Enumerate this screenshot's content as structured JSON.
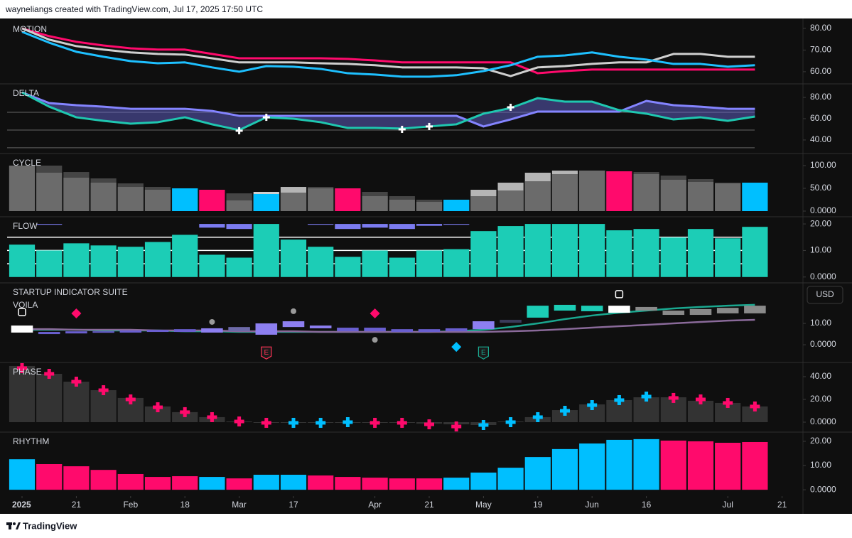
{
  "header": {
    "text": "wayneliangs created with TradingView.com, Jul 17, 2025 17:50 UTC"
  },
  "footer": {
    "logo_text": "TradingView"
  },
  "currency_button": "USD",
  "chart_data": [
    {
      "type": "line",
      "title": "MOTION",
      "ylim": [
        54.4,
        83.9
      ],
      "yticks": [
        {
          "value": 80,
          "label": "80.00"
        },
        {
          "value": 70,
          "label": "70.00"
        },
        {
          "value": 60,
          "label": "60.00"
        }
      ],
      "series": [
        {
          "color": "#ff0a6c",
          "values": [
            80,
            76.4,
            73.8,
            72.1,
            70.8,
            70.2,
            70.2,
            68.2,
            66.2,
            66.2,
            66.2,
            66.2,
            65.9,
            65.2,
            64.3,
            64.3,
            64.3,
            64.3,
            64.3,
            59.3,
            60.3,
            61,
            61,
            61,
            61,
            61,
            61,
            61
          ]
        },
        {
          "color": "#cfcfcf",
          "values": [
            80,
            74.8,
            71.8,
            70.2,
            68.9,
            68.2,
            67.9,
            66.2,
            64.3,
            64.3,
            64.3,
            63.9,
            63.6,
            63,
            62,
            62,
            62,
            61.6,
            58,
            62,
            62.6,
            63.6,
            64.3,
            64.3,
            68.2,
            68.2,
            66.9,
            66.9
          ]
        },
        {
          "color": "#1ec0ff",
          "values": [
            78.4,
            73.4,
            69.2,
            66.9,
            64.9,
            63.9,
            64.3,
            62,
            60,
            62.6,
            62.3,
            61.3,
            59.3,
            58.7,
            57.7,
            57.7,
            58.4,
            60.3,
            63,
            66.9,
            67.5,
            68.9,
            66.9,
            65.6,
            63.6,
            63.6,
            62.3,
            63
          ]
        }
      ]
    },
    {
      "type": "line",
      "title": "DELTA",
      "fill_between": "#6b6be0",
      "ylim": [
        27.3,
        92.7
      ],
      "yticks": [
        {
          "value": 80,
          "label": "80.00"
        },
        {
          "value": 60,
          "label": "60.00"
        },
        {
          "value": 40,
          "label": "40.00"
        }
      ],
      "levels": [
        66,
        49.3,
        32.7
      ],
      "series": [
        {
          "color": "#8484ff",
          "values": [
            84.7,
            74.7,
            72.7,
            71.3,
            69.3,
            69.3,
            69.3,
            67.3,
            62.7,
            62.7,
            62.7,
            62.7,
            62.7,
            62.7,
            62.7,
            62.7,
            62.7,
            52.7,
            59.3,
            66.7,
            66.7,
            66.7,
            66.7,
            76.7,
            72.7,
            71.3,
            69.3,
            69.3
          ]
        },
        {
          "color": "#1fc7b0",
          "values": [
            84.7,
            71.3,
            61.3,
            58,
            55.3,
            56.7,
            61.3,
            54.7,
            49.3,
            61.3,
            60,
            56.7,
            51.3,
            51.3,
            50.7,
            52.7,
            54.7,
            64.7,
            70,
            79.3,
            76,
            76,
            68,
            64.7,
            59.3,
            61.3,
            58,
            62
          ]
        }
      ],
      "markers": [
        {
          "index": 8,
          "value": 48.7
        },
        {
          "index": 9,
          "value": 61.3
        },
        {
          "index": 14,
          "value": 50
        },
        {
          "index": 15,
          "value": 52.7
        },
        {
          "index": 18,
          "value": 70.7
        }
      ]
    },
    {
      "type": "bar",
      "title": "CYCLE",
      "ylim": [
        -12.5,
        126.6
      ],
      "yticks": [
        {
          "value": 100,
          "label": "100.00"
        },
        {
          "value": 50,
          "label": "50.00"
        },
        {
          "value": 0,
          "label": "0.0000"
        }
      ],
      "series": [
        {
          "colors": [
            "#6b6b6b",
            "#454545",
            "#454545",
            "#454545",
            "#454545",
            "#454545",
            "#454545",
            "#454545",
            "#454545",
            "#cfcfcf",
            "#b5b5b5",
            "#454545",
            "#454545",
            "#454545",
            "#454545",
            "#454545",
            "#454545",
            "#b5b5b5",
            "#b5b5b5",
            "#b5b5b5",
            "#b5b5b5",
            "#6b6b6b",
            "#454545",
            "#454545",
            "#454545",
            "#454545",
            "#454545",
            "#454545"
          ],
          "values": [
            100,
            100,
            85.9,
            71.9,
            60.9,
            53.1,
            50,
            46.9,
            39,
            42.2,
            53.1,
            53.1,
            50,
            42.2,
            32.8,
            25,
            25,
            46.9,
            62.5,
            84.4,
            89,
            89,
            87.5,
            85.9,
            78.1,
            70.3,
            62.5,
            62.5
          ]
        },
        {
          "colors": [
            "#6b6b6b",
            "#6b6b6b",
            "#6b6b6b",
            "#6b6b6b",
            "#6b6b6b",
            "#6b6b6b",
            "#00bfff",
            "#ff0a6c",
            "#6b6b6b",
            "#00bfff",
            "#6b6b6b",
            "#6b6b6b",
            "#ff0a6c",
            "#6b6b6b",
            "#6b6b6b",
            "#6b6b6b",
            "#00bfff",
            "#6b6b6b",
            "#6b6b6b",
            "#6b6b6b",
            "#6b6b6b",
            "#6b6b6b",
            "#ff0a6c",
            "#6b6b6b",
            "#6b6b6b",
            "#6b6b6b",
            "#6b6b6b",
            "#00bfff"
          ],
          "values": [
            100,
            84.4,
            73.4,
            62.5,
            53.1,
            46.9,
            50,
            46.9,
            23.4,
            37.5,
            40.6,
            50,
            50,
            32.8,
            25,
            20.3,
            25,
            32.8,
            45.3,
            65.6,
            81.3,
            89,
            87.5,
            81.3,
            68.8,
            64.1,
            60.9,
            62.5
          ]
        }
      ]
    },
    {
      "type": "bar",
      "title": "FLOW",
      "ylim": [
        -2.2,
        22.7
      ],
      "yticks": [
        {
          "value": 20,
          "label": "20.00"
        },
        {
          "value": 10,
          "label": "10.00"
        },
        {
          "value": 0,
          "label": "0.0000"
        }
      ],
      "levels": [
        15,
        10,
        5
      ],
      "series": [
        {
          "color": "#1ccdb6",
          "values": [
            12.2,
            10,
            12.7,
            11.9,
            11.4,
            13.2,
            15.9,
            8.4,
            7.3,
            20,
            14.1,
            11.4,
            7.6,
            10,
            7.3,
            10,
            10.5,
            17.3,
            19.2,
            20,
            20,
            20,
            17.6,
            18.1,
            14.9,
            18.1,
            14.6,
            18.9
          ]
        },
        {
          "color": "#7b7bf0",
          "base": 20,
          "values": [
            null,
            19.7,
            null,
            null,
            null,
            null,
            null,
            18.6,
            18.1,
            null,
            null,
            19.7,
            18.1,
            18.6,
            18.1,
            19.3,
            19.7,
            null,
            null,
            null,
            null,
            null,
            null,
            null,
            null,
            null,
            null,
            null
          ]
        }
      ]
    },
    {
      "type": "candlestick",
      "title": "STARTUP INDICATOR SUITE",
      "subtitle": "VOILA",
      "ylim": [
        -8.3,
        29
      ],
      "yticks": [
        {
          "value": 10,
          "label": "10.00"
        },
        {
          "value": 0,
          "label": "0.0000"
        }
      ],
      "series": [
        {
          "type": "line",
          "color": "#1aa890",
          "values": [
            7,
            7,
            7,
            6.7,
            6.7,
            6.7,
            6.3,
            6.3,
            6,
            6,
            6,
            6,
            6,
            6,
            6,
            6,
            6.3,
            7,
            8.3,
            10,
            12,
            13.7,
            15,
            16,
            17,
            17.7,
            18.3,
            18.7
          ]
        },
        {
          "type": "line",
          "color": "#8a6a9a",
          "values": [
            7.3,
            7.3,
            7,
            7,
            7,
            6.7,
            6.7,
            6.7,
            6.3,
            6.3,
            6.3,
            6,
            6,
            6,
            6,
            6,
            6,
            6,
            6.3,
            6.7,
            7.3,
            8,
            8.7,
            9.3,
            10,
            10.7,
            11.3,
            11.7
          ]
        },
        {
          "type": "candlestick",
          "open": [
            9,
            6,
            6.3,
            6.3,
            6.7,
            7,
            7.3,
            7.7,
            8.3,
            10,
            11,
            9,
            8,
            8,
            7.3,
            7.3,
            7.7,
            11,
            11.7,
            18.3,
            18.7,
            18.3,
            18.3,
            17.7,
            16,
            16.7,
            17.3,
            18.3
          ],
          "close": [
            5.7,
            5,
            5.3,
            5.7,
            5.7,
            6,
            6,
            5.7,
            6.3,
            4.7,
            8.3,
            7.7,
            6.3,
            6.3,
            6,
            6,
            6.3,
            7.3,
            10.3,
            12.7,
            16,
            15.7,
            15,
            16,
            14,
            14,
            14.7,
            14.7
          ],
          "colors": [
            "#ffffff",
            "#6a5fd0",
            "#6a5fd0",
            "#6a5fd0",
            "#6a5fd0",
            "#6a5fd0",
            "#6a5fd0",
            "#8d7ff0",
            "#6d6aa8",
            "#8d7ff0",
            "#8d7ff0",
            "#8d7ff0",
            "#6a5fd0",
            "#6a5fd0",
            "#6a5fd0",
            "#6a5fd0",
            "#6a5fd0",
            "#8d7ff0",
            "#3a3a5a",
            "#1ccdb6",
            "#1ccdb6",
            "#1ccdb6",
            "#ffffff",
            "#8a8a8a",
            "#8a8a8a",
            "#8a8a8a",
            "#8a8a8a",
            "#8a8a8a"
          ]
        }
      ],
      "signals": [
        {
          "index": 0,
          "value": 15.3,
          "shape": "square",
          "color": "#ffffff"
        },
        {
          "index": 2,
          "value": 14.7,
          "shape": "diamond",
          "color": "#ff0a6c"
        },
        {
          "index": 7,
          "value": 10.7,
          "shape": "circle",
          "color": "#9a9a9a"
        },
        {
          "index": 9,
          "value": -3.7,
          "shape": "badge",
          "color": "#ff3355",
          "label": "E"
        },
        {
          "index": 10,
          "value": 15.7,
          "shape": "circle",
          "color": "#9a9a9a"
        },
        {
          "index": 13,
          "value": 14.7,
          "shape": "diamond",
          "color": "#ff0a6c"
        },
        {
          "index": 13,
          "value": 2.3,
          "shape": "circle",
          "color": "#9a9a9a"
        },
        {
          "index": 16,
          "value": -1,
          "shape": "diamond",
          "color": "#00bfff"
        },
        {
          "index": 17,
          "value": -3.7,
          "shape": "badge",
          "color": "#1aa890",
          "label": "E"
        },
        {
          "index": 22,
          "value": 23.7,
          "shape": "square",
          "color": "#ffffff"
        }
      ]
    },
    {
      "type": "bar",
      "title": "PHASE",
      "ylim": [
        -8.75,
        52.5
      ],
      "yticks": [
        {
          "value": 40,
          "label": "40.00"
        },
        {
          "value": 20,
          "label": "20.00"
        },
        {
          "value": 0,
          "label": "0.0000"
        }
      ],
      "series": [
        {
          "color": "#333333",
          "values": [
            49.4,
            42.5,
            35.6,
            28.1,
            21.3,
            13.8,
            8.8,
            4.4,
            0.6,
            0,
            0,
            0,
            0,
            0,
            -0.6,
            -1.3,
            -1.9,
            -2.5,
            0.6,
            4.4,
            10.6,
            15.6,
            19.4,
            21.9,
            21.9,
            18.8,
            16.9,
            13.8
          ]
        },
        {
          "type": "cross",
          "colors": [
            "#ff0a6c",
            "#ff0a6c",
            "#ff0a6c",
            "#ff0a6c",
            "#ff0a6c",
            "#ff0a6c",
            "#ff0a6c",
            "#ff0a6c",
            "#ff0a6c",
            "#ff0a6c",
            "#00bfff",
            "#00bfff",
            "#00bfff",
            "#ff0a6c",
            "#ff0a6c",
            "#ff0a6c",
            "#ff0a6c",
            "#00bfff",
            "#00bfff",
            "#00bfff",
            "#00bfff",
            "#00bfff",
            "#00bfff",
            "#00bfff",
            "#ff0a6c",
            "#ff0a6c",
            "#ff0a6c",
            "#ff0a6c"
          ],
          "values": [
            47.5,
            42.5,
            35.6,
            28.1,
            20,
            13.1,
            8.8,
            4.4,
            0.6,
            -0.6,
            -0.6,
            -0.6,
            0,
            -0.6,
            -0.6,
            -1.9,
            -3.8,
            -2.5,
            0,
            4.4,
            10,
            15,
            19.4,
            22.5,
            21.3,
            20,
            16.9,
            13.8
          ]
        }
      ]
    },
    {
      "type": "bar",
      "title": "RHYTHM",
      "ylim": [
        -2.6,
        23.8
      ],
      "xlim": [
        -0.55,
        28.77
      ],
      "yticks": [
        {
          "value": 20,
          "label": "20.00"
        },
        {
          "value": 10,
          "label": "10.00"
        },
        {
          "value": 0,
          "label": "0.0000"
        }
      ],
      "xticks": [
        {
          "value": 0,
          "label": "2025"
        },
        {
          "value": 2,
          "label": "21"
        },
        {
          "value": 4,
          "label": "Feb"
        },
        {
          "value": 6,
          "label": "18"
        },
        {
          "value": 8,
          "label": "Mar"
        },
        {
          "value": 10,
          "label": "17"
        },
        {
          "value": 13,
          "label": "Apr"
        },
        {
          "value": 15,
          "label": "21"
        },
        {
          "value": 17,
          "label": "May"
        },
        {
          "value": 19,
          "label": "19"
        },
        {
          "value": 21,
          "label": "Jun"
        },
        {
          "value": 23,
          "label": "16"
        },
        {
          "value": 26,
          "label": "Jul"
        },
        {
          "value": 28,
          "label": "21"
        }
      ],
      "series": [
        {
          "colors": [
            "#00bfff",
            "#ff0a6c",
            "#ff0a6c",
            "#ff0a6c",
            "#ff0a6c",
            "#ff0a6c",
            "#ff0a6c",
            "#00bfff",
            "#ff0a6c",
            "#00bfff",
            "#00bfff",
            "#ff0a6c",
            "#ff0a6c",
            "#ff0a6c",
            "#ff0a6c",
            "#ff0a6c",
            "#00bfff",
            "#00bfff",
            "#00bfff",
            "#00bfff",
            "#00bfff",
            "#00bfff",
            "#00bfff",
            "#00bfff",
            "#ff0a6c",
            "#ff0a6c",
            "#ff0a6c",
            "#ff0a6c"
          ],
          "values": [
            12.6,
            10.6,
            9.7,
            8.2,
            6.5,
            5.3,
            5.6,
            5.3,
            4.7,
            6.2,
            6.2,
            5.9,
            5.3,
            5,
            4.7,
            4.7,
            5,
            7.1,
            9.1,
            13.5,
            16.8,
            19.1,
            20.6,
            20.9,
            20.3,
            20,
            19.4,
            19.7
          ]
        }
      ]
    }
  ]
}
